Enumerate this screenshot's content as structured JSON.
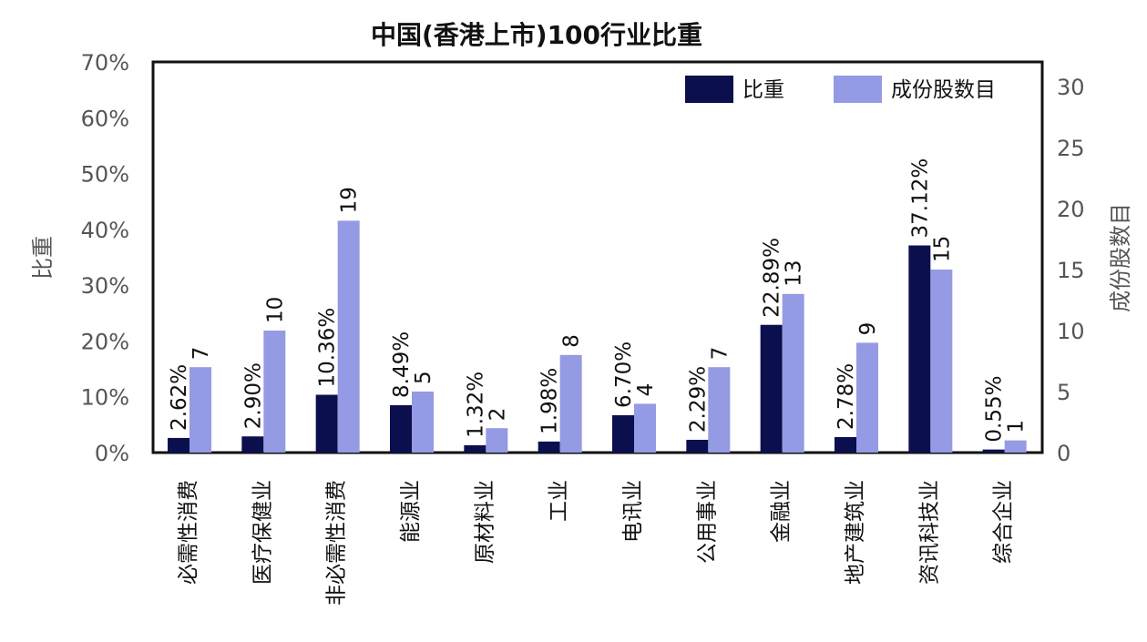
{
  "chart_data": {
    "type": "bar",
    "title": "中国(香港上市)100行业比重",
    "categories": [
      "必需性消费",
      "医疗保健业",
      "非必需性消费",
      "能源业",
      "原材料业",
      "工业",
      "电讯业",
      "公用事业",
      "金融业",
      "地产建筑业",
      "资讯科技业",
      "综合企业"
    ],
    "series": [
      {
        "name": "比重",
        "axis": "left",
        "color": "#0c0f4e",
        "values": [
          2.62,
          2.9,
          10.36,
          8.49,
          1.32,
          1.98,
          6.7,
          2.29,
          22.89,
          2.78,
          37.12,
          0.55
        ],
        "labels": [
          "2.62%",
          "2.90%",
          "10.36%",
          "8.49%",
          "1.32%",
          "1.98%",
          "6.70%",
          "2.29%",
          "22.89%",
          "2.78%",
          "37.12%",
          "0.55%"
        ]
      },
      {
        "name": "成份股数目",
        "axis": "right",
        "color": "#949ae3",
        "values": [
          7,
          10,
          19,
          5,
          2,
          8,
          4,
          7,
          13,
          9,
          15,
          1
        ],
        "labels": [
          "7",
          "10",
          "19",
          "5",
          "2",
          "8",
          "4",
          "7",
          "13",
          "9",
          "15",
          "1"
        ]
      }
    ],
    "ylabel": "比重",
    "y2label": "成份股数目",
    "ylim": [
      0,
      70
    ],
    "y2lim": [
      0,
      32.5
    ],
    "yticks": [
      "0%",
      "10%",
      "20%",
      "30%",
      "40%",
      "50%",
      "60%",
      "70%"
    ],
    "y2ticks": [
      "0",
      "5",
      "10",
      "15",
      "20",
      "25",
      "30"
    ],
    "legend_position": "top-right",
    "grid": false
  }
}
